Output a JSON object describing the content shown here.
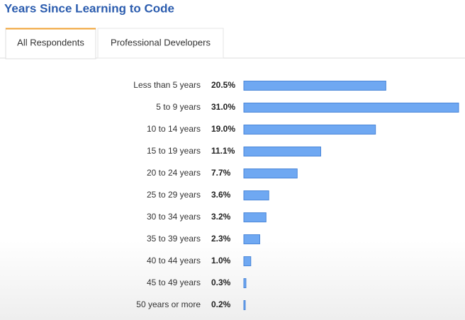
{
  "chart_data": {
    "type": "bar",
    "orientation": "horizontal",
    "title": "Years Since Learning to Code",
    "tabs": [
      "All Respondents",
      "Professional Developers"
    ],
    "categories": [
      "Less than 5 years",
      "5 to 9 years",
      "10 to 14 years",
      "15 to 19 years",
      "20 to 24 years",
      "25 to 29 years",
      "30 to 34 years",
      "35 to 39 years",
      "40 to 44 years",
      "45 to 49 years",
      "50 years or more"
    ],
    "values": [
      20.5,
      31.0,
      19.0,
      11.1,
      7.7,
      3.6,
      3.2,
      2.3,
      1.0,
      0.3,
      0.2
    ],
    "value_labels": [
      "20.5%",
      "31.0%",
      "19.0%",
      "11.1%",
      "7.7%",
      "3.6%",
      "3.2%",
      "2.3%",
      "1.0%",
      "0.3%",
      "0.2%"
    ],
    "color": "#6fa8f2"
  }
}
